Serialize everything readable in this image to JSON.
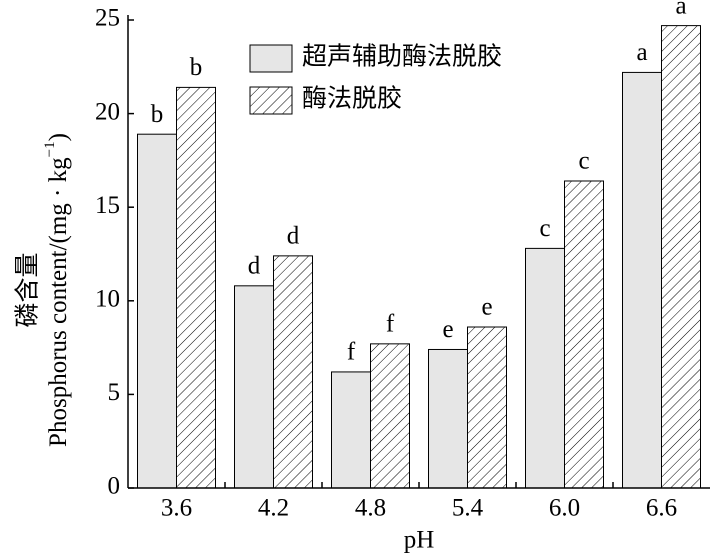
{
  "chart_data": {
    "type": "bar",
    "x_label": "pH",
    "y_label": {
      "cn": "磷含量",
      "en": "Phosphorus content/(mg · kg",
      "sup": "−1",
      "close": ")"
    },
    "categories": [
      "3.6",
      "4.2",
      "4.8",
      "5.4",
      "6.0",
      "6.6"
    ],
    "series": [
      {
        "name": "超声辅助酶法脱胶",
        "color": "#e6e6e6",
        "pattern": "solid",
        "values": [
          18.9,
          10.8,
          6.2,
          7.4,
          12.8,
          22.2
        ],
        "letters": [
          "b",
          "d",
          "f",
          "e",
          "c",
          "a"
        ]
      },
      {
        "name": "酶法脱胶",
        "color": "#ffffff",
        "pattern": "hatch",
        "values": [
          21.4,
          12.4,
          7.7,
          8.6,
          16.4,
          24.7
        ],
        "letters": [
          "b",
          "d",
          "f",
          "e",
          "c",
          "a"
        ]
      }
    ],
    "ylim": [
      0,
      25
    ],
    "yticks": [
      0,
      5,
      10,
      15,
      20,
      25
    ],
    "grid": false,
    "legend": "top"
  }
}
